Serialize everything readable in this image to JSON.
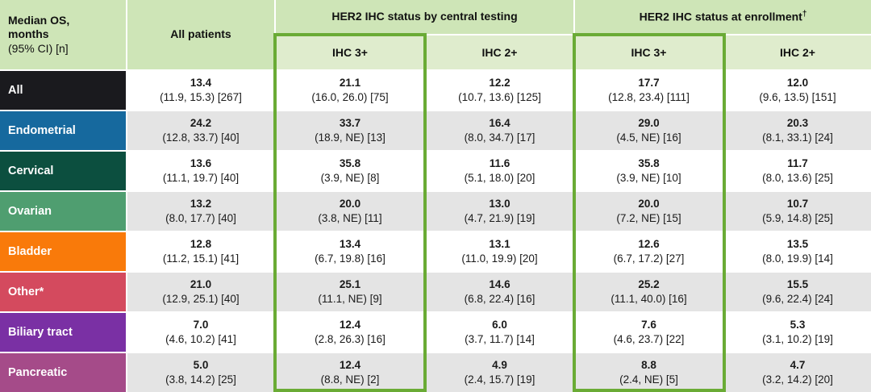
{
  "table": {
    "corner": {
      "line1": "Median OS,",
      "line2": "months",
      "line3": "(95% CI) [n]"
    },
    "col_headers": {
      "all_patients": "All patients",
      "central": "HER2 IHC status by central testing",
      "enrollment": "HER2 IHC status at enrollment",
      "enrollment_dagger": "†",
      "sub": [
        "IHC 3+",
        "IHC 2+",
        "IHC 3+",
        "IHC 2+"
      ]
    },
    "rows": [
      {
        "label": "All",
        "color": "#1a1a1e",
        "cells": [
          {
            "value": "13.4",
            "detail": "(11.9, 15.3) [267]"
          },
          {
            "value": "21.1",
            "detail": "(16.0, 26.0) [75]"
          },
          {
            "value": "12.2",
            "detail": "(10.7, 13.6) [125]"
          },
          {
            "value": "17.7",
            "detail": "(12.8, 23.4) [111]"
          },
          {
            "value": "12.0",
            "detail": "(9.6, 13.5) [151]"
          }
        ]
      },
      {
        "label": "Endometrial",
        "color": "#16699e",
        "cells": [
          {
            "value": "24.2",
            "detail": "(12.8, 33.7) [40]"
          },
          {
            "value": "33.7",
            "detail": "(18.9, NE) [13]"
          },
          {
            "value": "16.4",
            "detail": "(8.0, 34.7) [17]"
          },
          {
            "value": "29.0",
            "detail": "(4.5, NE) [16]"
          },
          {
            "value": "20.3",
            "detail": "(8.1, 33.1) [24]"
          }
        ]
      },
      {
        "label": "Cervical",
        "color": "#0c4f3f",
        "cells": [
          {
            "value": "13.6",
            "detail": "(11.1, 19.7) [40]"
          },
          {
            "value": "35.8",
            "detail": "(3.9, NE) [8]"
          },
          {
            "value": "11.6",
            "detail": "(5.1, 18.0) [20]"
          },
          {
            "value": "35.8",
            "detail": "(3.9, NE) [10]"
          },
          {
            "value": "11.7",
            "detail": "(8.0, 13.6) [25]"
          }
        ]
      },
      {
        "label": "Ovarian",
        "color": "#4f9e70",
        "cells": [
          {
            "value": "13.2",
            "detail": "(8.0, 17.7) [40]"
          },
          {
            "value": "20.0",
            "detail": "(3.8, NE) [11]"
          },
          {
            "value": "13.0",
            "detail": "(4.7, 21.9) [19]"
          },
          {
            "value": "20.0",
            "detail": "(7.2, NE) [15]"
          },
          {
            "value": "10.7",
            "detail": "(5.9, 14.8) [25]"
          }
        ]
      },
      {
        "label": "Bladder",
        "color": "#f97a0a",
        "cells": [
          {
            "value": "12.8",
            "detail": "(11.2, 15.1) [41]"
          },
          {
            "value": "13.4",
            "detail": "(6.7, 19.8) [16]"
          },
          {
            "value": "13.1",
            "detail": "(11.0, 19.9) [20]"
          },
          {
            "value": "12.6",
            "detail": "(6.7, 17.2) [27]"
          },
          {
            "value": "13.5",
            "detail": "(8.0, 19.9) [14]"
          }
        ]
      },
      {
        "label": "Other*",
        "color": "#d44a5e",
        "cells": [
          {
            "value": "21.0",
            "detail": "(12.9, 25.1) [40]"
          },
          {
            "value": "25.1",
            "detail": "(11.1, NE) [9]"
          },
          {
            "value": "14.6",
            "detail": "(6.8, 22.4) [16]"
          },
          {
            "value": "25.2",
            "detail": "(11.1, 40.0) [16]"
          },
          {
            "value": "15.5",
            "detail": "(9.6, 22.4) [24]"
          }
        ]
      },
      {
        "label": "Biliary tract",
        "color": "#7a30a4",
        "cells": [
          {
            "value": "7.0",
            "detail": "(4.6, 10.2) [41]"
          },
          {
            "value": "12.4",
            "detail": "(2.8, 26.3) [16]"
          },
          {
            "value": "6.0",
            "detail": "(3.7, 11.7) [14]"
          },
          {
            "value": "7.6",
            "detail": "(4.6, 23.7) [22]"
          },
          {
            "value": "5.3",
            "detail": "(3.1, 10.2) [19]"
          }
        ]
      },
      {
        "label": "Pancreatic",
        "color": "#a54b89",
        "cells": [
          {
            "value": "5.0",
            "detail": "(3.8, 14.2) [25]"
          },
          {
            "value": "12.4",
            "detail": "(8.8, NE) [2]"
          },
          {
            "value": "4.9",
            "detail": "(2.4, 15.7) [19]"
          },
          {
            "value": "8.8",
            "detail": "(2.4, NE) [5]"
          },
          {
            "value": "4.7",
            "detail": "(3.2, 14.2) [20]"
          }
        ]
      }
    ]
  },
  "colors": {
    "header_green": "#cee5b7",
    "subheader_green": "#dfeccd",
    "highlight_border_green": "#6aab35",
    "row_stripe_gray": "#e4e4e4"
  }
}
